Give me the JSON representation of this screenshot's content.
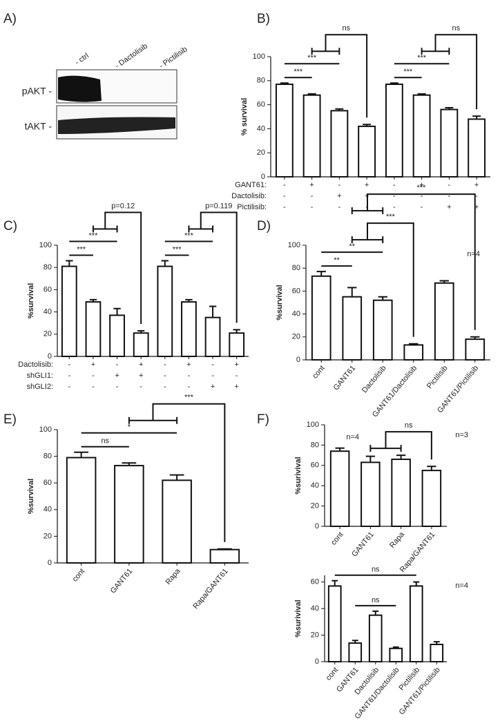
{
  "blot": {
    "panel_label": "A)",
    "lanes": [
      "- ctrl",
      "- Dactolisib",
      "- Pictilisib"
    ],
    "rows": [
      "pAKT -",
      "tAKT -"
    ]
  },
  "chart_data": [
    {
      "type": "bar",
      "panel_label": "B)",
      "ylabel": "% survival",
      "categories": [
        null,
        null,
        null,
        null,
        null,
        null,
        null,
        null
      ],
      "values": [
        77,
        68,
        55,
        42,
        77,
        68,
        56,
        48
      ],
      "errors": [
        1,
        1,
        1.5,
        1.5,
        1,
        1,
        1.5,
        2.5
      ],
      "ylim": [
        0,
        100
      ],
      "yticks": [
        0,
        20,
        40,
        60,
        80,
        100
      ],
      "color": "#ffffff",
      "conditions": [
        {
          "name": "GANT61:",
          "signs": [
            "-",
            "+",
            "-",
            "+",
            "-",
            "+",
            "-",
            "+"
          ]
        },
        {
          "name": "Dactolisib:",
          "signs": [
            "-",
            "-",
            "+",
            "+",
            "-",
            "-",
            "-",
            "-"
          ]
        },
        {
          "name": "Pictilisib:",
          "signs": [
            "-",
            "-",
            "-",
            "-",
            "-",
            "-",
            "+",
            "+"
          ]
        }
      ],
      "comparisons": [
        {
          "label": "***",
          "from": 0,
          "to": 1
        },
        {
          "label": "***",
          "from": 0,
          "to": 2
        },
        {
          "label": "ns",
          "from": [
            1,
            2
          ],
          "to": 3
        },
        {
          "label": "***",
          "from": 4,
          "to": 5
        },
        {
          "label": "***",
          "from": 4,
          "to": 6
        },
        {
          "label": "ns",
          "from": [
            5,
            6
          ],
          "to": 7
        }
      ]
    },
    {
      "type": "bar",
      "panel_label": "C)",
      "ylabel": "%survival",
      "categories": [
        null,
        null,
        null,
        null,
        null,
        null,
        null,
        null
      ],
      "values": [
        81,
        49,
        37,
        21,
        81,
        49,
        35,
        21
      ],
      "errors": [
        5,
        2,
        6,
        2,
        5,
        2,
        10,
        3
      ],
      "ylim": [
        0,
        100
      ],
      "yticks": [
        0,
        20,
        40,
        60,
        80,
        100
      ],
      "color": "#ffffff",
      "conditions": [
        {
          "name": "Dactolisib:",
          "signs": [
            "-",
            "+",
            "-",
            "+",
            "-",
            "+",
            "-",
            "+"
          ]
        },
        {
          "name": "shGLI1:",
          "signs": [
            "-",
            "-",
            "+",
            "+",
            "-",
            "-",
            "-",
            "-"
          ]
        },
        {
          "name": "shGLI2:",
          "signs": [
            "-",
            "-",
            "-",
            "-",
            "-",
            "-",
            "+",
            "+"
          ]
        }
      ],
      "comparisons": [
        {
          "label": "***",
          "from": 0,
          "to": 1
        },
        {
          "label": "***",
          "from": 0,
          "to": 2
        },
        {
          "label": "p=0.12",
          "from": [
            1,
            2
          ],
          "to": 3
        },
        {
          "label": "***",
          "from": 4,
          "to": 5
        },
        {
          "label": "***",
          "from": 4,
          "to": 6
        },
        {
          "label": "p=0.119",
          "from": [
            5,
            6
          ],
          "to": 7
        }
      ]
    },
    {
      "type": "bar",
      "panel_label": "D)",
      "ylabel": "%survival",
      "note": "n=4",
      "categories": [
        "cont",
        "GANT61",
        "Dactolisib",
        "GANT61/Dactolisib",
        "Pictilisib",
        "GANT61/Pictilisib"
      ],
      "values": [
        73,
        55,
        52,
        13,
        67,
        18
      ],
      "errors": [
        4,
        8,
        3,
        1,
        2,
        2
      ],
      "ylim": [
        0,
        100
      ],
      "yticks": [
        0,
        20,
        40,
        60,
        80,
        100
      ],
      "color": "#ffffff",
      "comparisons": [
        {
          "label": "**",
          "from": 0,
          "to": 1
        },
        {
          "label": "**",
          "from": 0,
          "to": 2
        },
        {
          "label": "***",
          "from": [
            1,
            2
          ],
          "to": 3
        },
        {
          "label": "***",
          "from": [
            1,
            2
          ],
          "to": 5
        }
      ]
    },
    {
      "type": "bar",
      "panel_label": "E)",
      "ylabel": "%survival",
      "note": "n=4",
      "categories": [
        "cont",
        "GANT61",
        "Rapa",
        "Rapa/GANT61"
      ],
      "values": [
        79,
        73,
        62,
        10
      ],
      "errors": [
        4,
        2,
        4,
        0.5
      ],
      "ylim": [
        0,
        100
      ],
      "yticks": [
        0,
        20,
        40,
        60,
        80,
        100
      ],
      "color": "#ffffff",
      "comparisons": [
        {
          "label": "ns",
          "from": 0,
          "to": 1
        },
        {
          "label": "*",
          "from": 0,
          "to": 2
        },
        {
          "label": "***",
          "from": [
            1,
            2
          ],
          "to": 3
        }
      ]
    },
    {
      "type": "bar",
      "panel_label": "F)",
      "ylabel": "%surivival",
      "note": "n=3",
      "categories": [
        "cont",
        "GANT61",
        "Rapa",
        "Rapa/GANT61"
      ],
      "values": [
        74,
        63,
        66,
        55
      ],
      "errors": [
        3,
        6,
        4,
        4
      ],
      "ylim": [
        0,
        100
      ],
      "yticks": [
        0,
        20,
        40,
        60,
        80,
        100
      ],
      "color": "#ffffff",
      "comparisons": [
        {
          "label": "ns",
          "from": [
            1,
            2
          ],
          "to": 3
        }
      ]
    },
    {
      "type": "bar",
      "ylabel": "%surivival",
      "note": "n=4",
      "categories": [
        "cont",
        "GANT61",
        "Dactolisib",
        "GANT61/Dactolisib",
        "Pictilisib",
        "GANT61/Pictilisib"
      ],
      "values": [
        57,
        14,
        35,
        10,
        57,
        13
      ],
      "errors": [
        4,
        2,
        3,
        1,
        3,
        2
      ],
      "ylim": [
        0,
        65
      ],
      "yticks": [
        0,
        20,
        40,
        60
      ],
      "color": "#ffffff",
      "comparisons": [
        {
          "label": "ns",
          "from": 1,
          "to": 3
        },
        {
          "label": "ns",
          "from": 0,
          "to": 4
        }
      ]
    }
  ]
}
